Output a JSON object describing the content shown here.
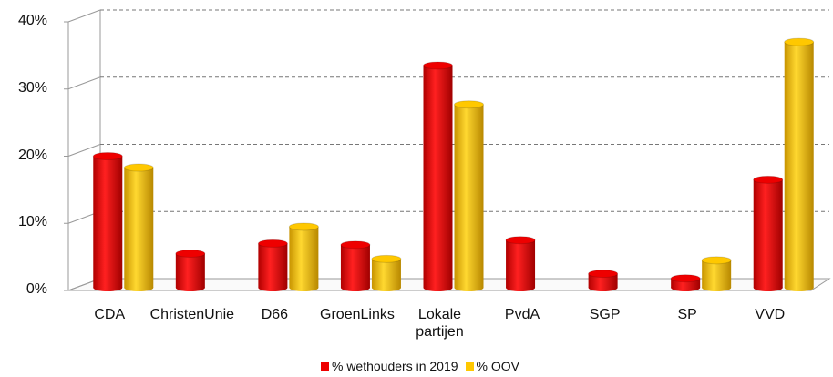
{
  "chart_data": {
    "type": "bar3d",
    "categories": [
      "CDA",
      "ChristenUnie",
      "D66",
      "GroenLinks",
      "Lokale partijen",
      "PvdA",
      "SGP",
      "SP",
      "VVD"
    ],
    "series": [
      {
        "name": "% wethouders in 2019",
        "color": "#ee0000",
        "values": [
          20,
          5.5,
          7,
          6.8,
          33.5,
          7.5,
          2.5,
          1.8,
          16.5
        ]
      },
      {
        "name": "% OOV",
        "color": "#ffc800",
        "values": [
          18.3,
          null,
          9.5,
          4.7,
          27.7,
          null,
          null,
          4.5,
          37
        ]
      }
    ],
    "ylim": [
      0,
      40
    ],
    "yticks": [
      {
        "value": 0,
        "label": "0%"
      },
      {
        "value": 10,
        "label": "10%"
      },
      {
        "value": 20,
        "label": "20%"
      },
      {
        "value": 30,
        "label": "30%"
      },
      {
        "value": 40,
        "label": "40%"
      }
    ],
    "grid": true,
    "legend": "bottom"
  }
}
